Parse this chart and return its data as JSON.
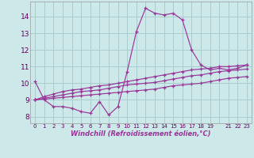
{
  "background_color": "#cce8e8",
  "grid_color": "#aacccc",
  "line_color": "#993399",
  "x_label": "Windchill (Refroidissement éolien,°C)",
  "x_ticks": [
    0,
    1,
    2,
    3,
    4,
    5,
    6,
    7,
    8,
    9,
    10,
    11,
    12,
    13,
    14,
    15,
    16,
    17,
    18,
    19,
    20,
    21,
    22,
    23
  ],
  "x_tick_labels": [
    "0",
    "1",
    "2",
    "3",
    "4",
    "5",
    "6",
    "7",
    "8",
    "9",
    "10",
    "11",
    "12",
    "13",
    "14",
    "15",
    "16",
    "17",
    "18",
    "19",
    " ",
    "21",
    "22",
    "23"
  ],
  "y_ticks": [
    8,
    9,
    10,
    11,
    12,
    13,
    14
  ],
  "xlim": [
    -0.5,
    23.5
  ],
  "ylim": [
    7.6,
    14.9
  ],
  "series": [
    [
      10.1,
      9.0,
      8.6,
      8.6,
      8.5,
      8.3,
      8.2,
      8.9,
      8.1,
      8.6,
      10.7,
      13.1,
      14.5,
      14.2,
      14.1,
      14.2,
      13.8,
      12.0,
      11.1,
      10.8,
      10.9,
      10.8,
      10.9,
      11.1
    ],
    [
      9.0,
      9.2,
      9.35,
      9.5,
      9.6,
      9.65,
      9.75,
      9.85,
      9.9,
      10.0,
      10.1,
      10.2,
      10.3,
      10.4,
      10.5,
      10.6,
      10.7,
      10.8,
      10.85,
      10.9,
      11.0,
      11.0,
      11.05,
      11.1
    ],
    [
      9.0,
      9.1,
      9.2,
      9.3,
      9.4,
      9.5,
      9.55,
      9.6,
      9.7,
      9.8,
      9.9,
      9.95,
      10.0,
      10.05,
      10.15,
      10.25,
      10.35,
      10.45,
      10.5,
      10.6,
      10.7,
      10.75,
      10.8,
      10.85
    ],
    [
      9.0,
      9.05,
      9.1,
      9.15,
      9.2,
      9.25,
      9.3,
      9.35,
      9.4,
      9.45,
      9.5,
      9.55,
      9.6,
      9.65,
      9.75,
      9.85,
      9.9,
      9.95,
      10.0,
      10.1,
      10.2,
      10.3,
      10.35,
      10.4
    ]
  ]
}
